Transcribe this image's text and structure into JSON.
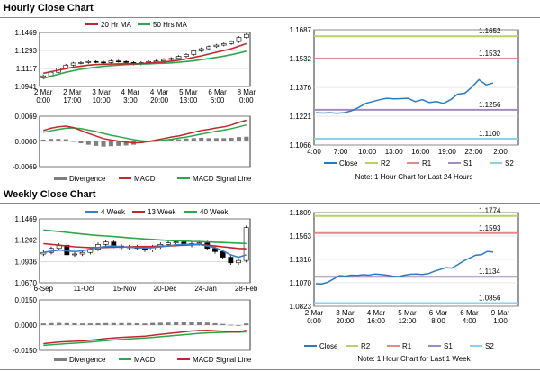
{
  "hourly_title": "Hourly Close Chart",
  "weekly_title": "Weekly Close Chart",
  "colors": {
    "red": "#c0282d",
    "green": "#2ea64a",
    "blue": "#1f6fb5",
    "ma_blue": "#3d7fc6",
    "gray": "#7f7f7f",
    "r2": "#b7d26a",
    "r1": "#e08a8a",
    "s1": "#a48bbf",
    "s2": "#8ed0e8",
    "close": "#2b7bbf"
  },
  "chart_data": [
    {
      "id": "hourly_candles",
      "type": "candlestick",
      "legend": [
        "20 Hr MA",
        "50 Hrs MA"
      ],
      "ylim": [
        1.0941,
        1.1469
      ],
      "yticks": [
        "1.1469",
        "1.1293",
        "1.1117",
        "1.0941"
      ],
      "xticks": [
        "2 Mar\n0:00",
        "2 Mar\n17:00",
        "3 Mar\n10:00",
        "4 Mar\n3:00",
        "4 Mar\n20:00",
        "5 Mar\n13:00",
        "6 Mar\n6:00",
        "8 Mar\n0:00"
      ],
      "close": [
        1.1045,
        1.108,
        1.112,
        1.115,
        1.117,
        1.1175,
        1.1185,
        1.118,
        1.1175,
        1.119,
        1.1185,
        1.1175,
        1.116,
        1.1175,
        1.1185,
        1.119,
        1.1205,
        1.1215,
        1.1235,
        1.1255,
        1.129,
        1.131,
        1.133,
        1.1345,
        1.136,
        1.138,
        1.142,
        1.145
      ],
      "ma20": [
        1.107,
        1.1085,
        1.11,
        1.1115,
        1.113,
        1.114,
        1.115,
        1.1155,
        1.1158,
        1.116,
        1.1162,
        1.1163,
        1.1162,
        1.1165,
        1.117,
        1.1175,
        1.118,
        1.1188,
        1.1198,
        1.121,
        1.1225,
        1.124,
        1.1258,
        1.1275,
        1.1292,
        1.131,
        1.1335,
        1.136
      ],
      "ma50": [
        1.102,
        1.104,
        1.106,
        1.108,
        1.1095,
        1.111,
        1.112,
        1.113,
        1.1138,
        1.1145,
        1.115,
        1.1155,
        1.1158,
        1.116,
        1.1162,
        1.1165,
        1.1168,
        1.1172,
        1.1178,
        1.1185,
        1.1193,
        1.1203,
        1.1213,
        1.1225,
        1.1238,
        1.1252,
        1.1268,
        1.1285
      ]
    },
    {
      "id": "hourly_macd",
      "type": "macd",
      "ylim": [
        -0.0069,
        0.0069
      ],
      "yticks": [
        "0.0069",
        "0.0000",
        "-0.0069"
      ],
      "legend": [
        "Divergence",
        "MACD",
        "MACD Signal Line"
      ],
      "macd": [
        0.003,
        0.0036,
        0.004,
        0.0042,
        0.0038,
        0.003,
        0.0022,
        0.0015,
        0.0008,
        0.0004,
        0.0001,
        -0.0002,
        -0.0004,
        -0.0003,
        0.0,
        0.0004,
        0.0008,
        0.0012,
        0.0015,
        0.002,
        0.0025,
        0.003,
        0.0033,
        0.0037,
        0.004,
        0.0045,
        0.0052,
        0.0058
      ],
      "signal": [
        0.0025,
        0.0029,
        0.0033,
        0.0036,
        0.0037,
        0.0035,
        0.0031,
        0.0027,
        0.0022,
        0.0017,
        0.0013,
        0.0009,
        0.0005,
        0.0002,
        0.0,
        0.0001,
        0.0003,
        0.0006,
        0.0009,
        0.0012,
        0.0016,
        0.002,
        0.0024,
        0.0028,
        0.0031,
        0.0035,
        0.004,
        0.0045
      ]
    },
    {
      "id": "hourly_line",
      "type": "line",
      "ylim": [
        1.1066,
        1.1687
      ],
      "yticks": [
        "1.1687",
        "1.1532",
        "1.1376",
        "1.1221",
        "1.1066"
      ],
      "xticks": [
        "4:00",
        "7:00",
        "10:00",
        "13:00",
        "16:00",
        "19:00",
        "23:00",
        "2:00"
      ],
      "levels": [
        {
          "name": "R2",
          "value": 1.1652,
          "label": "1.1652"
        },
        {
          "name": "R1",
          "value": 1.1532,
          "label": "1.1532"
        },
        {
          "name": "S1",
          "value": 1.1256,
          "label": "1.1256"
        },
        {
          "name": "S2",
          "value": 1.11,
          "label": "1.1100"
        }
      ],
      "close": [
        1.124,
        1.1238,
        1.124,
        1.1237,
        1.124,
        1.125,
        1.1268,
        1.129,
        1.13,
        1.131,
        1.1318,
        1.1315,
        1.1316,
        1.1318,
        1.13,
        1.131,
        1.1295,
        1.13,
        1.129,
        1.131,
        1.134,
        1.1345,
        1.1378,
        1.1418,
        1.139,
        1.14
      ],
      "legend": [
        "Close",
        "R2",
        "R1",
        "S1",
        "S2"
      ],
      "note": "Note: 1 Hour Chart for Last 24 Hours"
    },
    {
      "id": "weekly_candles",
      "type": "candlestick",
      "legend": [
        "4 Week",
        "13 Week",
        "40 Week"
      ],
      "ylim": [
        1.067,
        1.1469
      ],
      "yticks": [
        "1.1469",
        "1.1202",
        "1.0936",
        "1.0670"
      ],
      "xticks": [
        "6-Sep",
        "11-Oct",
        "15-Nov",
        "20-Dec",
        "24-Jan",
        "28-Feb"
      ],
      "close": [
        1.105,
        1.11,
        1.114,
        1.102,
        1.103,
        1.105,
        1.109,
        1.115,
        1.118,
        1.113,
        1.111,
        1.112,
        1.11,
        1.108,
        1.112,
        1.115,
        1.117,
        1.118,
        1.114,
        1.116,
        1.117,
        1.11,
        1.106,
        1.099,
        1.092,
        1.095,
        1.136
      ],
      "ma4": [
        1.105,
        1.1065,
        1.108,
        1.107,
        1.106,
        1.107,
        1.109,
        1.111,
        1.1125,
        1.113,
        1.112,
        1.1115,
        1.111,
        1.1105,
        1.111,
        1.112,
        1.113,
        1.1145,
        1.115,
        1.115,
        1.115,
        1.113,
        1.111,
        1.107,
        1.102,
        1.099,
        1.102
      ],
      "ma13": [
        1.116,
        1.115,
        1.114,
        1.113,
        1.112,
        1.1115,
        1.111,
        1.111,
        1.1112,
        1.1115,
        1.1118,
        1.112,
        1.1122,
        1.1123,
        1.1125,
        1.1128,
        1.113,
        1.1135,
        1.114,
        1.1145,
        1.1148,
        1.114,
        1.113,
        1.112,
        1.111,
        1.11,
        1.1095
      ],
      "ma40": [
        1.133,
        1.132,
        1.131,
        1.13,
        1.129,
        1.128,
        1.127,
        1.1262,
        1.1255,
        1.1248,
        1.124,
        1.1232,
        1.1225,
        1.1218,
        1.1212,
        1.1206,
        1.12,
        1.1196,
        1.1192,
        1.1188,
        1.1185,
        1.1182,
        1.1178,
        1.1174,
        1.117,
        1.1166,
        1.1162
      ]
    },
    {
      "id": "weekly_macd",
      "type": "macd",
      "ylim": [
        -0.015,
        0.015
      ],
      "yticks": [
        "0.0150",
        "0.0000",
        "-0.0150"
      ],
      "legend": [
        "Divergence",
        "MACD",
        "MACD Signal Line"
      ],
      "macd": [
        -0.011,
        -0.0105,
        -0.01,
        -0.0098,
        -0.0096,
        -0.0094,
        -0.009,
        -0.0085,
        -0.008,
        -0.0076,
        -0.0073,
        -0.007,
        -0.0068,
        -0.0066,
        -0.006,
        -0.0055,
        -0.005,
        -0.0045,
        -0.004,
        -0.0035,
        -0.0032,
        -0.0031,
        -0.0033,
        -0.0036,
        -0.004,
        -0.0042,
        -0.003
      ],
      "signal": [
        -0.012,
        -0.0117,
        -0.0113,
        -0.011,
        -0.0107,
        -0.0104,
        -0.01,
        -0.0096,
        -0.0092,
        -0.0088,
        -0.0085,
        -0.0082,
        -0.0079,
        -0.0076,
        -0.0073,
        -0.0069,
        -0.0065,
        -0.0061,
        -0.0057,
        -0.0053,
        -0.0049,
        -0.0046,
        -0.0044,
        -0.0043,
        -0.0042,
        -0.0042,
        -0.004
      ]
    },
    {
      "id": "weekly_line",
      "type": "line",
      "ylim": [
        1.0823,
        1.1809
      ],
      "yticks": [
        "1.1809",
        "1.1563",
        "1.1316",
        "1.1070",
        "1.0823"
      ],
      "xticks": [
        "2 Mar\n0:00",
        "3 Mar\n20:00",
        "4 Mar\n16:00",
        "5 Mar\n12:00",
        "6 Mar\n8:00",
        "6 Mar\n4:00",
        "9 Mar\n1:00"
      ],
      "levels": [
        {
          "name": "R2",
          "value": 1.1774,
          "label": "1.1774"
        },
        {
          "name": "R1",
          "value": 1.1593,
          "label": "1.1593"
        },
        {
          "name": "S1",
          "value": 1.1134,
          "label": "1.1134"
        },
        {
          "name": "S2",
          "value": 1.0856,
          "label": "1.0856"
        }
      ],
      "close": [
        1.106,
        1.1058,
        1.1075,
        1.111,
        1.1145,
        1.114,
        1.115,
        1.1148,
        1.1155,
        1.115,
        1.1162,
        1.1158,
        1.115,
        1.114,
        1.1135,
        1.115,
        1.116,
        1.1162,
        1.1158,
        1.1165,
        1.119,
        1.121,
        1.123,
        1.1225,
        1.126,
        1.13,
        1.133,
        1.136,
        1.1365,
        1.14,
        1.1395
      ],
      "legend": [
        "Close",
        "R2",
        "R1",
        "S1",
        "S2"
      ],
      "note": "Note: 1 Hour Chart for Last 1 Week"
    }
  ]
}
